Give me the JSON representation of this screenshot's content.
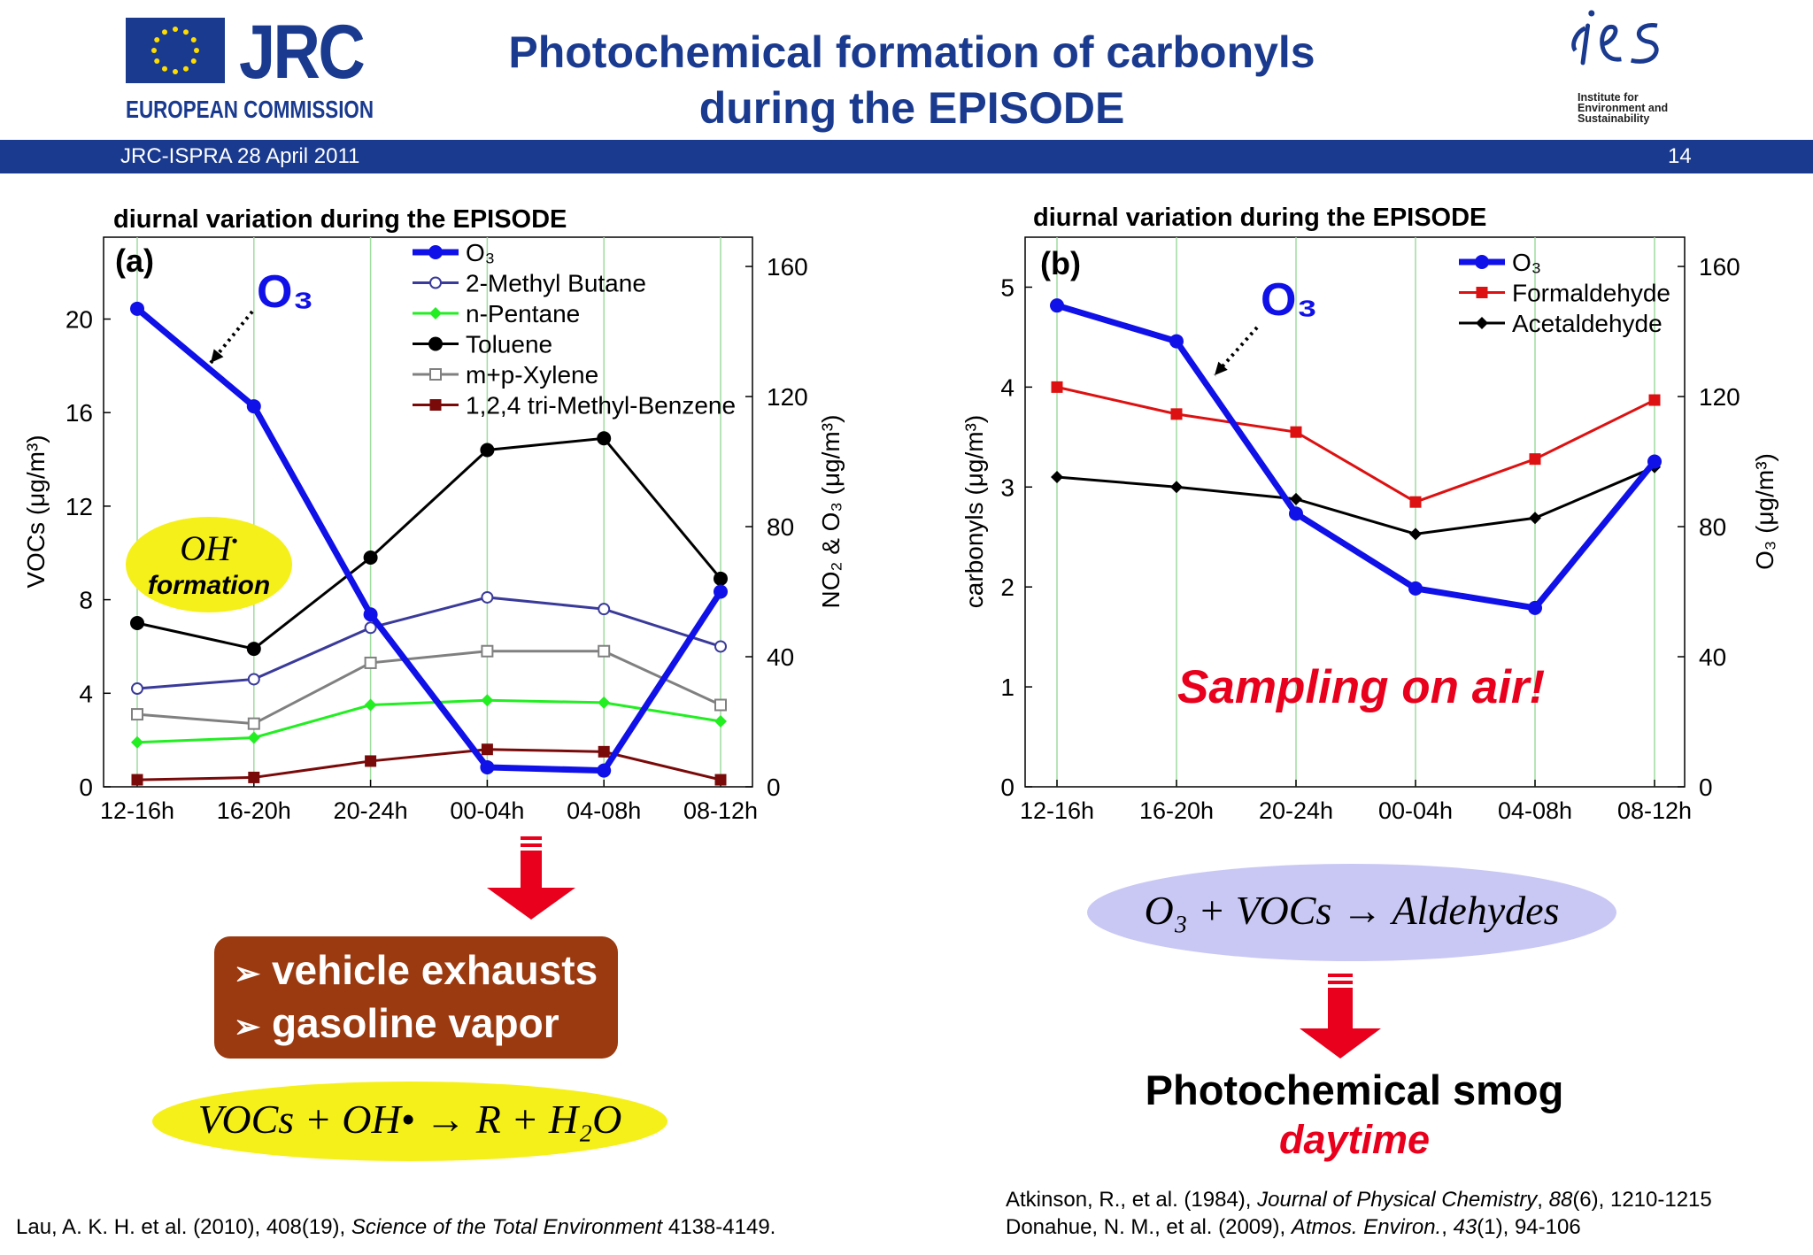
{
  "header": {
    "jrc_logo_text": "JRC",
    "jrc_logo_sub": "EUROPEAN COMMISSION",
    "title_line1": "Photochemical formation of carbonyls",
    "title_line2": "during the EPISODE",
    "ies_logo_text": "ies",
    "ies_sub": [
      "Institute for",
      "Environment and",
      "Sustainability"
    ],
    "bar_left": "JRC-ISPRA 28 April 2011",
    "page_number": "14"
  },
  "colors": {
    "brand_blue": "#1a3a8f",
    "o3_blue": "#1010e8",
    "red_accent": "#e8001c",
    "exhaust_box": "#9b3a10",
    "yellow_ellipse": "#f5f01a",
    "lavender_ellipse": "#c9c8f5"
  },
  "chart_data": [
    {
      "id": "a",
      "type": "line",
      "title": "diurnal variation during the EPISODE",
      "panel_label": "(a)",
      "categories": [
        "12-16h",
        "16-20h",
        "20-24h",
        "00-04h",
        "04-08h",
        "08-12h"
      ],
      "ylabel": "VOCs (μg/m³)",
      "ylim": [
        0,
        23.5
      ],
      "yticks": [
        0,
        4,
        8,
        12,
        16,
        20
      ],
      "y2label": "NO₂ & O₃ (μg/m³)",
      "y2lim": [
        0,
        169
      ],
      "y2ticks": [
        0,
        40,
        80,
        120,
        160
      ],
      "legend_position": "top-right",
      "grid": "vertical gridlines at categories",
      "annotation": "O₃",
      "series": [
        {
          "name": "O₃",
          "axis": "right",
          "color": "#1010e8",
          "marker": "filled-circle",
          "values": [
            147,
            117,
            53,
            6,
            5,
            60
          ]
        },
        {
          "name": "2-Methyl Butane",
          "axis": "left",
          "color": "#3a3a9a",
          "marker": "open-circle",
          "values": [
            4.2,
            4.6,
            6.8,
            8.1,
            7.6,
            6.0
          ]
        },
        {
          "name": "n-Pentane",
          "axis": "left",
          "color": "#22ee22",
          "marker": "diamond",
          "values": [
            1.9,
            2.1,
            3.5,
            3.7,
            3.6,
            2.8
          ]
        },
        {
          "name": "Toluene",
          "axis": "left",
          "color": "#000000",
          "marker": "filled-circle",
          "values": [
            7.0,
            5.9,
            9.8,
            14.4,
            14.9,
            8.9
          ]
        },
        {
          "name": "m+p-Xylene",
          "axis": "left",
          "color": "#808080",
          "marker": "open-square",
          "values": [
            3.1,
            2.7,
            5.3,
            5.8,
            5.8,
            3.5
          ]
        },
        {
          "name": "1,2,4 tri-Methyl-Benzene",
          "axis": "left",
          "color": "#7a0a0a",
          "marker": "filled-square",
          "values": [
            0.3,
            0.4,
            1.1,
            1.6,
            1.5,
            0.3
          ]
        }
      ]
    },
    {
      "id": "b",
      "type": "line",
      "title": "diurnal variation during the EPISODE",
      "panel_label": "(b)",
      "categories": [
        "12-16h",
        "16-20h",
        "20-24h",
        "00-04h",
        "04-08h",
        "08-12h"
      ],
      "ylabel": "carbonyls (μg/m³)",
      "ylim": [
        0,
        5.5
      ],
      "yticks": [
        0,
        1,
        2,
        3,
        4,
        5
      ],
      "y2label": "O₃ (μg/m³)",
      "y2lim": [
        0,
        169
      ],
      "y2ticks": [
        0,
        40,
        80,
        120,
        160
      ],
      "legend_position": "top-right",
      "grid": "vertical gridlines at categories",
      "annotation": "O₃",
      "series": [
        {
          "name": "O₃",
          "axis": "right",
          "color": "#1010e8",
          "marker": "filled-circle",
          "values": [
            148,
            137,
            84,
            61,
            55,
            100
          ]
        },
        {
          "name": "Formaldehyde",
          "axis": "left",
          "color": "#dd1111",
          "marker": "filled-square",
          "values": [
            4.0,
            3.73,
            3.55,
            2.85,
            3.28,
            3.87
          ]
        },
        {
          "name": "Acetaldehyde",
          "axis": "left",
          "color": "#000000",
          "marker": "diamond",
          "values": [
            3.1,
            3.0,
            2.88,
            2.53,
            2.69,
            3.2
          ]
        }
      ]
    }
  ],
  "annotations": {
    "oh_formation_top": "OH",
    "oh_formation_bottom": "formation",
    "sampling": "Sampling on air!",
    "exhaust_items": [
      "vehicle exhausts",
      "gasoline vapor"
    ],
    "reaction_left": "VOCs + OH• → R + H₂O",
    "reaction_right": "O₃ + VOCs → Aldehydes",
    "smog": "Photochemical smog",
    "daytime": "daytime"
  },
  "references": {
    "left_1": "Lau, A. K. H. et al. (2010), 408(19), ",
    "left_2": "Science of the Total Environment",
    "left_3": " 4138-4149.",
    "right_a1": "Atkinson, R., et al. (1984),  ",
    "right_a2": "Journal of Physical Chemistry",
    "right_a3": ", ",
    "right_a4": "88",
    "right_a5": "(6), 1210-1215",
    "right_b1": "Donahue, N. M., et al. (2009),  ",
    "right_b2": "Atmos. Environ.",
    "right_b3": ", ",
    "right_b4": "43",
    "right_b5": "(1), 94-106"
  }
}
